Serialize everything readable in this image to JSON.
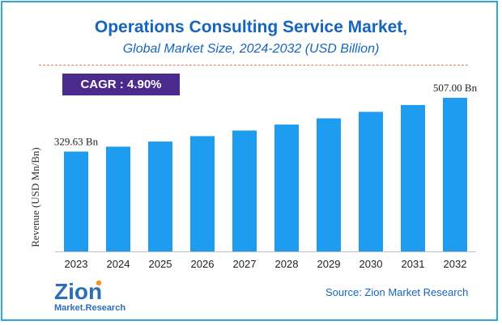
{
  "header": {
    "title": "Operations Consulting Service Market,",
    "subtitle": "Global Market Size, 2024-2032 (USD Billion)"
  },
  "cagr": {
    "label": "CAGR :",
    "value": "4.90%"
  },
  "source": "Source: Zion Market Research",
  "logo": {
    "line1": "Zion",
    "line2": "Market.Research"
  },
  "colors": {
    "bar": "#1e9cf0",
    "title": "#1565c0",
    "cagr_bg": "#4b2a8e",
    "frame": "#2fa7d8"
  },
  "chart_data": {
    "type": "bar",
    "categories": [
      "2023",
      "2024",
      "2025",
      "2026",
      "2027",
      "2028",
      "2029",
      "2030",
      "2031",
      "2032"
    ],
    "values": [
      329.63,
      345.8,
      362.7,
      380.5,
      399.1,
      418.7,
      439.2,
      460.7,
      483.3,
      507.0
    ],
    "data_labels": [
      {
        "index": 0,
        "text": "329.63 Bn"
      },
      {
        "index": 9,
        "text": "507.00 Bn"
      }
    ],
    "ylabel": "Revenue (USD Mn/Bn)",
    "xlabel": "",
    "ylim": [
      0,
      560
    ],
    "grid": false,
    "legend": "none"
  }
}
